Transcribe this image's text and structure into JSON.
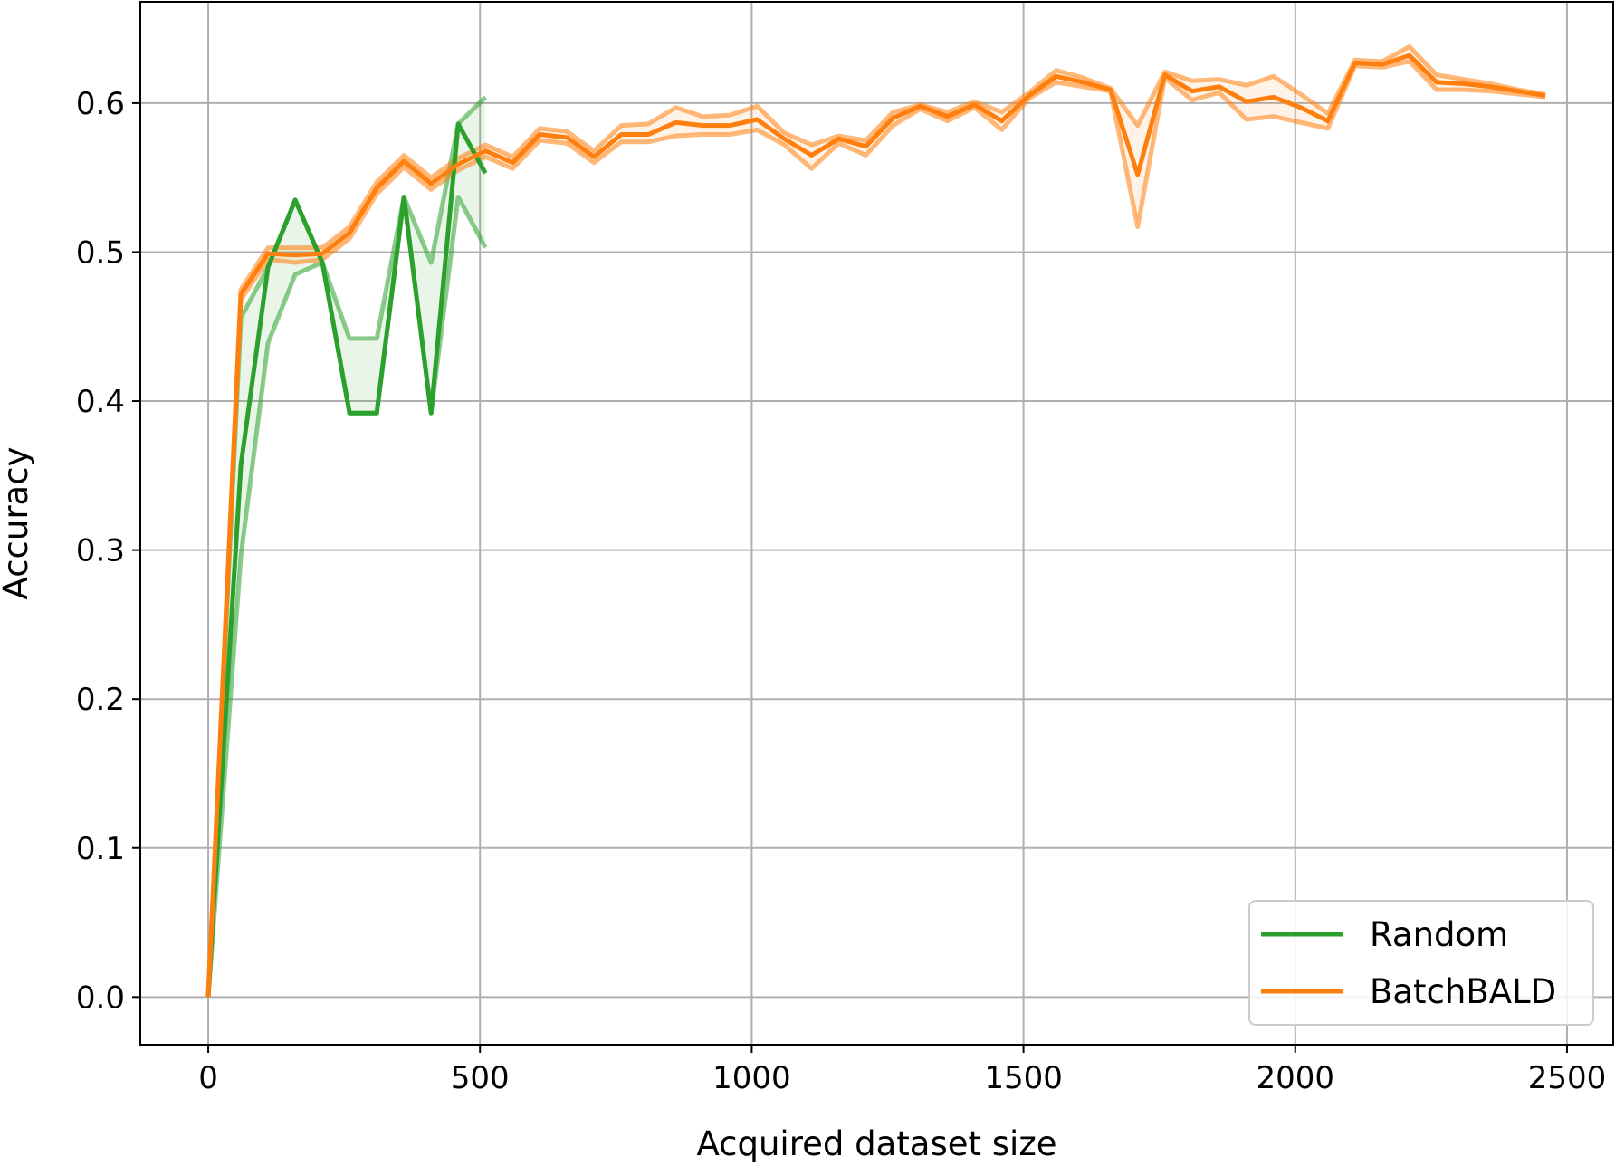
{
  "chart_data": {
    "type": "line",
    "title": "",
    "xlabel": "Acquired dataset size",
    "ylabel": "Accuracy",
    "xlim": [
      -125,
      2585
    ],
    "ylim": [
      -0.032,
      0.668
    ],
    "grid": true,
    "legend_position": "lower-right",
    "x_ticks": [
      {
        "value": 0,
        "label": "0"
      },
      {
        "value": 500,
        "label": "500"
      },
      {
        "value": 1000,
        "label": "1000"
      },
      {
        "value": 1500,
        "label": "1500"
      },
      {
        "value": 2000,
        "label": "2000"
      },
      {
        "value": 2500,
        "label": "2500"
      }
    ],
    "y_ticks": [
      {
        "value": 0.0,
        "label": "0.0"
      },
      {
        "value": 0.1,
        "label": "0.1"
      },
      {
        "value": 0.2,
        "label": "0.2"
      },
      {
        "value": 0.3,
        "label": "0.3"
      },
      {
        "value": 0.4,
        "label": "0.4"
      },
      {
        "value": 0.5,
        "label": "0.5"
      },
      {
        "value": 0.6,
        "label": "0.6"
      }
    ],
    "series": [
      {
        "name": "Random",
        "color": "#2ca02c",
        "x": [
          0,
          60,
          110,
          160,
          210,
          260,
          310,
          360,
          410,
          460,
          510
        ],
        "mean": [
          0.0,
          0.357,
          0.49,
          0.535,
          0.493,
          0.392,
          0.392,
          0.537,
          0.392,
          0.586,
          0.553
        ],
        "upper": [
          0.0,
          0.456,
          0.49,
          0.535,
          0.493,
          0.442,
          0.442,
          0.537,
          0.493,
          0.586,
          0.604
        ],
        "lower": [
          0.0,
          0.296,
          0.439,
          0.485,
          0.493,
          0.392,
          0.392,
          0.537,
          0.392,
          0.537,
          0.503
        ]
      },
      {
        "name": "BatchBALD",
        "color": "#ff7f0e",
        "x": [
          0,
          60,
          110,
          160,
          210,
          260,
          310,
          360,
          410,
          460,
          510,
          560,
          610,
          660,
          710,
          760,
          810,
          860,
          910,
          960,
          1010,
          1060,
          1110,
          1160,
          1210,
          1260,
          1310,
          1360,
          1410,
          1460,
          1510,
          1560,
          1610,
          1660,
          1710,
          1760,
          1810,
          1860,
          1910,
          1960,
          2010,
          2060,
          2110,
          2160,
          2210,
          2260,
          2310,
          2360,
          2410,
          2460
        ],
        "mean": [
          0.0,
          0.472,
          0.499,
          0.498,
          0.499,
          0.513,
          0.543,
          0.561,
          0.546,
          0.559,
          0.568,
          0.56,
          0.579,
          0.577,
          0.564,
          0.579,
          0.579,
          0.587,
          0.585,
          0.585,
          0.589,
          0.576,
          0.565,
          0.576,
          0.571,
          0.59,
          0.598,
          0.591,
          0.599,
          0.588,
          0.605,
          0.618,
          0.614,
          0.609,
          0.552,
          0.619,
          0.608,
          0.611,
          0.601,
          0.604,
          0.597,
          0.588,
          0.627,
          0.626,
          0.632,
          0.614,
          0.613,
          0.611,
          0.608,
          0.605
        ],
        "upper": [
          0.0,
          0.475,
          0.503,
          0.503,
          0.503,
          0.517,
          0.547,
          0.565,
          0.55,
          0.563,
          0.572,
          0.564,
          0.583,
          0.581,
          0.568,
          0.585,
          0.586,
          0.597,
          0.591,
          0.592,
          0.598,
          0.58,
          0.572,
          0.578,
          0.575,
          0.594,
          0.599,
          0.594,
          0.601,
          0.594,
          0.607,
          0.622,
          0.617,
          0.61,
          0.585,
          0.621,
          0.615,
          0.616,
          0.612,
          0.618,
          0.606,
          0.593,
          0.629,
          0.628,
          0.638,
          0.619,
          0.616,
          0.613,
          0.609,
          0.606
        ],
        "lower": [
          0.0,
          0.468,
          0.495,
          0.493,
          0.495,
          0.509,
          0.539,
          0.557,
          0.542,
          0.555,
          0.564,
          0.556,
          0.575,
          0.573,
          0.56,
          0.574,
          0.574,
          0.578,
          0.579,
          0.579,
          0.582,
          0.572,
          0.556,
          0.573,
          0.565,
          0.585,
          0.596,
          0.588,
          0.597,
          0.582,
          0.603,
          0.614,
          0.611,
          0.608,
          0.517,
          0.617,
          0.602,
          0.607,
          0.589,
          0.591,
          0.587,
          0.583,
          0.625,
          0.624,
          0.628,
          0.609,
          0.609,
          0.608,
          0.606,
          0.604
        ]
      }
    ]
  }
}
